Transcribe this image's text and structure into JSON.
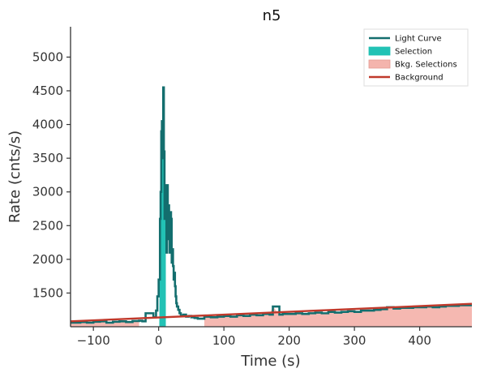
{
  "chart_data": {
    "type": "line",
    "title": "n5",
    "xlabel": "Time (s)",
    "ylabel": "Rate (cnts/s)",
    "xlim": [
      -135,
      480
    ],
    "ylim": [
      1000,
      5450
    ],
    "x_ticks": [
      -100,
      0,
      100,
      200,
      300,
      400
    ],
    "y_ticks": [
      1500,
      2000,
      2500,
      3000,
      3500,
      4000,
      4500,
      5000
    ],
    "x_tick_labels": [
      "−100",
      "0",
      "100",
      "200",
      "300",
      "400"
    ],
    "y_tick_labels": [
      "1500",
      "2000",
      "2500",
      "3000",
      "3500",
      "4000",
      "4500",
      "5000"
    ],
    "legend": {
      "placement": "top-right",
      "entries": [
        {
          "label": "Light Curve",
          "kind": "line",
          "color": "#136e6e"
        },
        {
          "label": "Selection",
          "kind": "patch",
          "color": "#22c2b5"
        },
        {
          "label": "Bkg. Selections",
          "kind": "patch",
          "color": "#f4b4ad"
        },
        {
          "label": "Background",
          "kind": "line",
          "color": "#c0392b"
        }
      ]
    },
    "light_curve": {
      "name": "Light Curve",
      "color": "#136e6e",
      "points": [
        [
          -135,
          1060
        ],
        [
          -120,
          1070
        ],
        [
          -110,
          1060
        ],
        [
          -100,
          1075
        ],
        [
          -90,
          1080
        ],
        [
          -80,
          1060
        ],
        [
          -70,
          1075
        ],
        [
          -60,
          1080
        ],
        [
          -50,
          1070
        ],
        [
          -40,
          1085
        ],
        [
          -30,
          1090
        ],
        [
          -25,
          1080
        ],
        [
          -20,
          1200
        ],
        [
          -10,
          1200
        ],
        [
          -8,
          1140
        ],
        [
          -4,
          1240
        ],
        [
          -2,
          1450
        ],
        [
          0,
          1700
        ],
        [
          2,
          2600
        ],
        [
          3,
          3000
        ],
        [
          4,
          3900
        ],
        [
          5,
          4050
        ],
        [
          6,
          3500
        ],
        [
          7,
          4550
        ],
        [
          8,
          3600
        ],
        [
          9,
          2600
        ],
        [
          10,
          2900
        ],
        [
          11,
          3100
        ],
        [
          12,
          2100
        ],
        [
          13,
          3100
        ],
        [
          14,
          2400
        ],
        [
          15,
          2800
        ],
        [
          16,
          2300
        ],
        [
          17,
          2100
        ],
        [
          18,
          2700
        ],
        [
          19,
          2600
        ],
        [
          20,
          1950
        ],
        [
          21,
          2150
        ],
        [
          22,
          1900
        ],
        [
          23,
          1700
        ],
        [
          24,
          1800
        ],
        [
          25,
          1600
        ],
        [
          26,
          1450
        ],
        [
          27,
          1350
        ],
        [
          28,
          1300
        ],
        [
          30,
          1250
        ],
        [
          32,
          1200
        ],
        [
          34,
          1170
        ],
        [
          38,
          1180
        ],
        [
          42,
          1150
        ],
        [
          46,
          1160
        ],
        [
          50,
          1140
        ],
        [
          55,
          1130
        ],
        [
          60,
          1120
        ],
        [
          70,
          1150
        ],
        [
          80,
          1140
        ],
        [
          90,
          1150
        ],
        [
          100,
          1160
        ],
        [
          110,
          1150
        ],
        [
          120,
          1170
        ],
        [
          130,
          1160
        ],
        [
          140,
          1180
        ],
        [
          150,
          1170
        ],
        [
          160,
          1190
        ],
        [
          170,
          1180
        ],
        [
          175,
          1300
        ],
        [
          185,
          1180
        ],
        [
          190,
          1190
        ],
        [
          200,
          1190
        ],
        [
          210,
          1200
        ],
        [
          220,
          1190
        ],
        [
          230,
          1200
        ],
        [
          240,
          1210
        ],
        [
          250,
          1200
        ],
        [
          260,
          1220
        ],
        [
          270,
          1210
        ],
        [
          280,
          1220
        ],
        [
          290,
          1230
        ],
        [
          300,
          1220
        ],
        [
          310,
          1240
        ],
        [
          320,
          1240
        ],
        [
          330,
          1250
        ],
        [
          340,
          1260
        ],
        [
          350,
          1290
        ],
        [
          360,
          1270
        ],
        [
          370,
          1280
        ],
        [
          380,
          1280
        ],
        [
          390,
          1290
        ],
        [
          400,
          1290
        ],
        [
          410,
          1300
        ],
        [
          420,
          1290
        ],
        [
          430,
          1300
        ],
        [
          440,
          1310
        ],
        [
          450,
          1310
        ],
        [
          460,
          1320
        ],
        [
          470,
          1320
        ],
        [
          480,
          1320
        ]
      ]
    },
    "selection": {
      "name": "Selection",
      "color": "#22c2b5",
      "x_range": [
        1,
        11
      ]
    },
    "background_selections": {
      "name": "Bkg. Selections",
      "color": "#f4b4ad",
      "ranges": [
        [
          -135,
          -30
        ],
        [
          70,
          480
        ]
      ]
    },
    "background": {
      "name": "Background",
      "color": "#c0392b",
      "points": [
        [
          -135,
          1080
        ],
        [
          480,
          1340
        ]
      ]
    }
  }
}
